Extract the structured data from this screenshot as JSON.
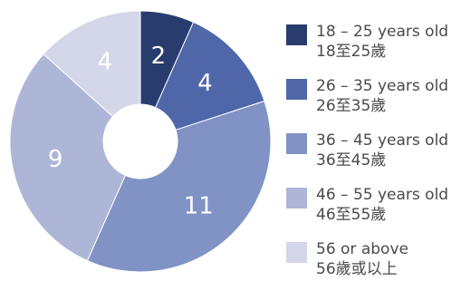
{
  "chart_data": {
    "type": "pie",
    "donut": true,
    "title": "",
    "legend_position": "right",
    "categories": [
      "18 – 25 years old",
      "26 – 35 years old",
      "36 – 45 years old",
      "46 – 55 years old",
      "56 or above"
    ],
    "categories_zh": [
      "18至25歲",
      "26至35歲",
      "36至45歲",
      "46至55歲",
      "56歲或以上"
    ],
    "values": [
      2,
      4,
      11,
      9,
      4
    ],
    "data_labels": [
      "2",
      "4",
      "11",
      "9",
      "4"
    ],
    "colors": [
      "#283c6e",
      "#4f67a9",
      "#8093c4",
      "#aeb6d8",
      "#d4d6e9"
    ]
  }
}
